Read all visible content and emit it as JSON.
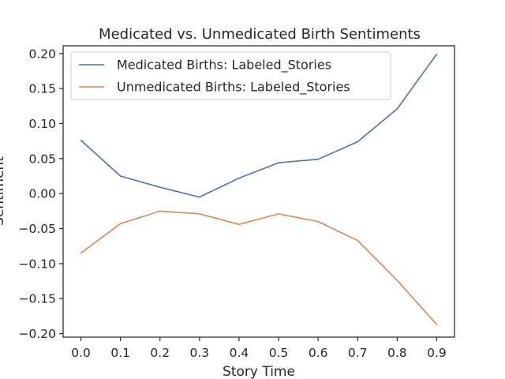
{
  "chart_data": {
    "type": "line",
    "title": "Medicated vs. Unmedicated Birth Sentiments",
    "xlabel": "Story Time",
    "ylabel": "Sentiment",
    "x": [
      0.0,
      0.1,
      0.2,
      0.3,
      0.4,
      0.5,
      0.6,
      0.7,
      0.8,
      0.9
    ],
    "xticks": [
      "0.0",
      "0.1",
      "0.2",
      "0.3",
      "0.4",
      "0.5",
      "0.6",
      "0.7",
      "0.8",
      "0.9"
    ],
    "yticks": [
      "0.20",
      "0.15",
      "0.10",
      "0.05",
      "0.00",
      "−0.05",
      "−0.10",
      "−0.15",
      "−0.20"
    ],
    "ytick_values": [
      0.2,
      0.15,
      0.1,
      0.05,
      0.0,
      -0.05,
      -0.1,
      -0.15,
      -0.2
    ],
    "xlim": [
      -0.045,
      0.945
    ],
    "ylim": [
      -0.205,
      0.211
    ],
    "grid": false,
    "legend_position": "top-left",
    "series": [
      {
        "name": "Medicated Births: Labeled_Stories",
        "color": "#4c72b0",
        "values": [
          0.076,
          0.025,
          0.009,
          -0.005,
          0.022,
          0.044,
          0.049,
          0.074,
          0.121,
          0.199
        ]
      },
      {
        "name": "Unmedicated Births: Labeled_Stories",
        "color": "#dd8452",
        "values": [
          -0.085,
          -0.043,
          -0.025,
          -0.029,
          -0.044,
          -0.029,
          -0.04,
          -0.067,
          -0.124,
          -0.187
        ]
      }
    ]
  }
}
